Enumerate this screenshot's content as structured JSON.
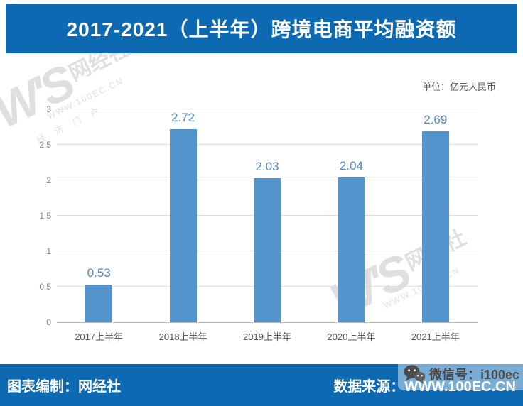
{
  "title": "2017-2021（上半年）跨境电商平均融资额",
  "unit_label": "单位：亿元人民币",
  "chart_data": {
    "type": "bar",
    "categories": [
      "2017上半年",
      "2018上半年",
      "2019上半年",
      "2020上半年",
      "2021上半年"
    ],
    "values": [
      0.53,
      2.72,
      2.03,
      2.04,
      2.69
    ],
    "title": "2017-2021（上半年）跨境电商平均融资额",
    "xlabel": "",
    "ylabel": "",
    "unit": "亿元人民币",
    "ylim": [
      0,
      3
    ],
    "ytick_step": 0.5,
    "grid": true,
    "legend": false,
    "bar_color": "#5494CD",
    "value_label_color": "#4E86C6"
  },
  "footer": {
    "left": "图表编制：网经社",
    "right": "数据来源：WWW.100EC.CN"
  },
  "wechat_badge": {
    "label": "微信号：i100ec"
  },
  "watermark": {
    "logo": "W'S",
    "brand": "网经社",
    "url": "WWW.100EC.CN",
    "tagline": "经济门户"
  },
  "colors": {
    "banner_blue": "#0C69B2",
    "bar_blue": "#5494CD",
    "value_label_blue": "#4E86C6",
    "gridline": "#DCDCDC"
  }
}
